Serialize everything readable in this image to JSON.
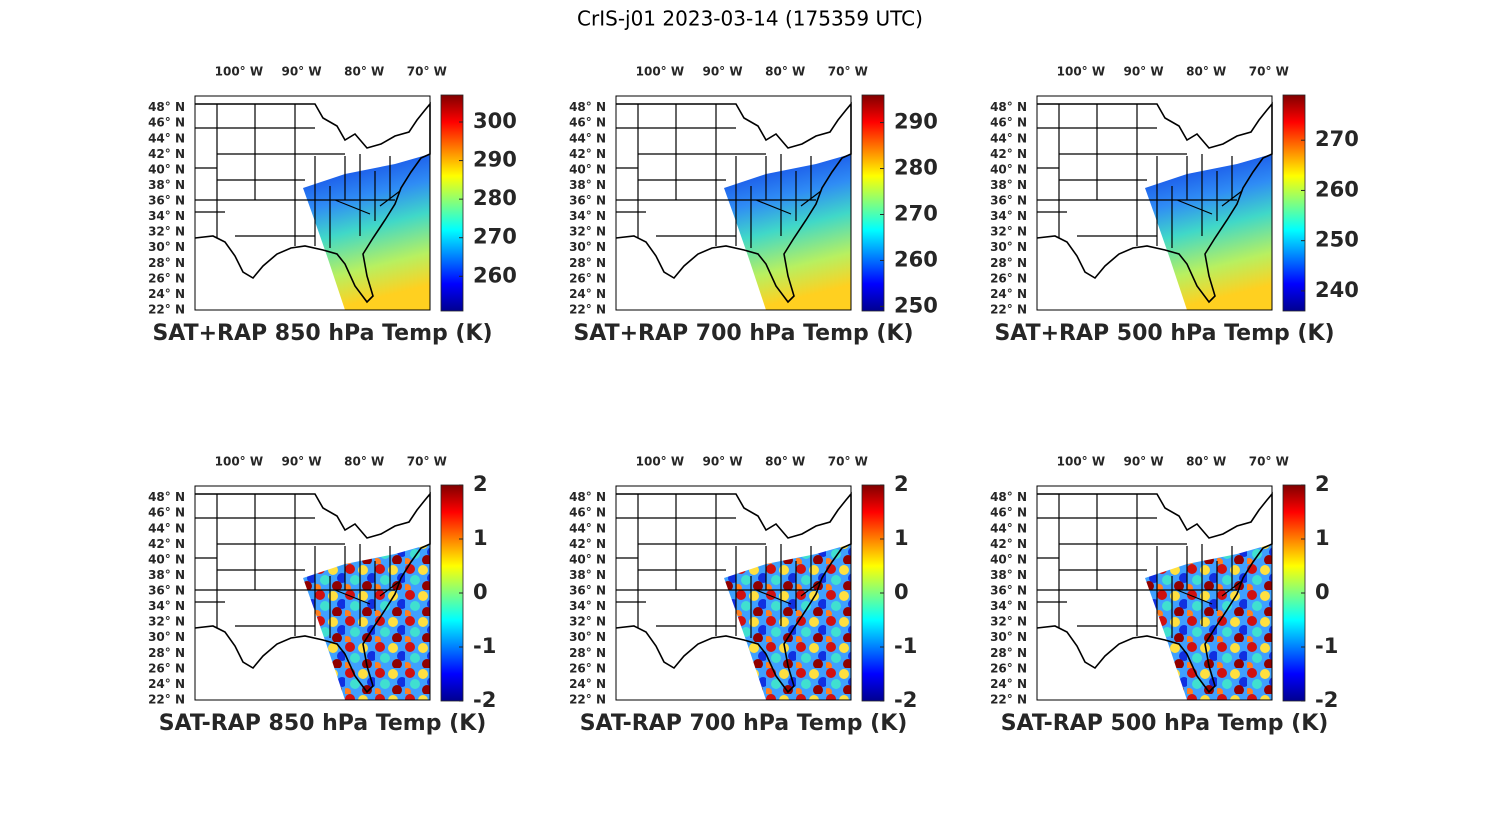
{
  "figure": {
    "title": "CrIS-j01 2023-03-14 (175359 UTC)",
    "lonlim": [
      -107,
      -69.5
    ],
    "latlim": [
      22,
      49.5
    ],
    "lon_ticks": [
      {
        "value": -100,
        "label": "100° W"
      },
      {
        "value": -90,
        "label": "90° W"
      },
      {
        "value": -80,
        "label": "80° W"
      },
      {
        "value": -70,
        "label": "70° W"
      }
    ],
    "lat_ticks": [
      {
        "value": 22,
        "label": "22° N"
      },
      {
        "value": 24,
        "label": "24° N"
      },
      {
        "value": 26,
        "label": "26° N"
      },
      {
        "value": 28,
        "label": "28° N"
      },
      {
        "value": 30,
        "label": "30° N"
      },
      {
        "value": 32,
        "label": "32° N"
      },
      {
        "value": 34,
        "label": "34° N"
      },
      {
        "value": 36,
        "label": "36° N"
      },
      {
        "value": 38,
        "label": "38° N"
      },
      {
        "value": 40,
        "label": "40° N"
      },
      {
        "value": 42,
        "label": "42° N"
      },
      {
        "value": 44,
        "label": "44° N"
      },
      {
        "value": 46,
        "label": "46° N"
      },
      {
        "value": 48,
        "label": "48° N"
      }
    ],
    "panels": [
      {
        "title": "SAT+RAP 850 hPa Temp (K)",
        "clim": [
          251,
          307
        ],
        "cticks": [
          260,
          270,
          280,
          290,
          300
        ]
      },
      {
        "title": "SAT+RAP 700 hPa Temp (K)",
        "clim": [
          249,
          296
        ],
        "cticks": [
          250,
          260,
          270,
          280,
          290
        ]
      },
      {
        "title": "SAT+RAP 500 hPa Temp (K)",
        "clim": [
          236,
          279
        ],
        "cticks": [
          240,
          250,
          260,
          270
        ]
      },
      {
        "title": "SAT-RAP 850 hPa Temp (K)",
        "clim": [
          -2,
          2
        ],
        "cticks": [
          -2,
          -1,
          0,
          1,
          2
        ]
      },
      {
        "title": "SAT-RAP 700 hPa Temp (K)",
        "clim": [
          -2,
          2
        ],
        "cticks": [
          -2,
          -1,
          0,
          1,
          2
        ]
      },
      {
        "title": "SAT-RAP 500 hPa Temp (K)",
        "clim": [
          -2,
          2
        ],
        "cticks": [
          -2,
          -1,
          0,
          1,
          2
        ]
      }
    ]
  }
}
